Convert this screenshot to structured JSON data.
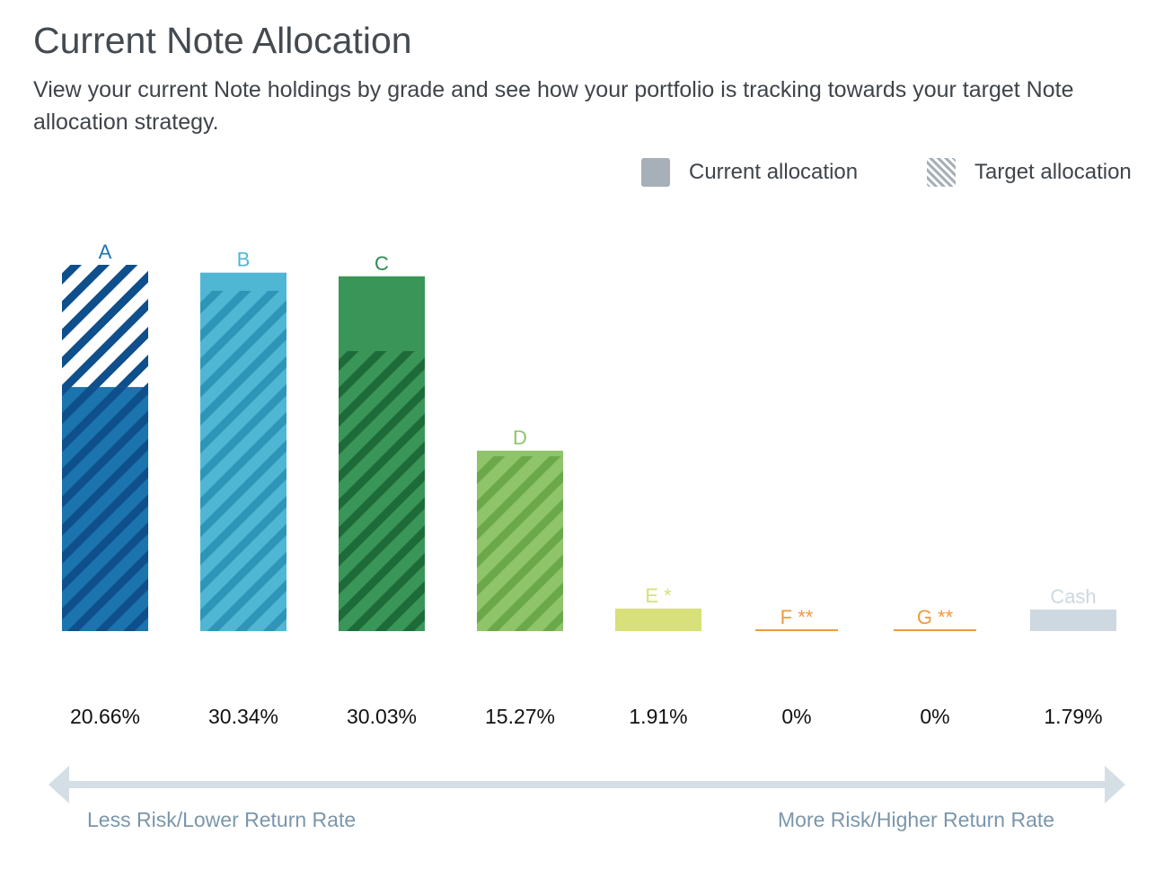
{
  "header": {
    "title": "Current Note Allocation",
    "subtitle": "View your current Note holdings by grade and see how your portfolio is tracking towards your target Note allocation strategy."
  },
  "legend": {
    "current_label": "Current allocation",
    "target_label": "Target allocation",
    "current_swatch_color": "#a7b0b8",
    "target_swatch_color": "#a7b0b8"
  },
  "chart_data": {
    "type": "bar",
    "categories": [
      "A",
      "B",
      "C",
      "D",
      "E *",
      "F **",
      "G **",
      "Cash"
    ],
    "series": [
      {
        "name": "Current allocation",
        "values": [
          20.66,
          30.34,
          30.03,
          15.27,
          1.91,
          0,
          0,
          1.79
        ]
      },
      {
        "name": "Target allocation",
        "values": [
          31,
          28.8,
          23.7,
          14.8,
          0,
          0,
          0,
          0
        ]
      }
    ],
    "value_labels": [
      "20.66%",
      "30.34%",
      "30.03%",
      "15.27%",
      "1.91%",
      "0%",
      "0%",
      "1.79%"
    ],
    "colors": [
      "#1b74ae",
      "#4fb7d3",
      "#3a9658",
      "#8fc46a",
      "#d7e07a",
      "#ef9a3d",
      "#ef9a3d",
      "#cdd8e0"
    ],
    "stripe_colors": [
      "#0e4f8c",
      "#2d96b8",
      "#1e6b3a",
      "#6aa84a",
      "#c5cf5a",
      "#e28a2a",
      "#e28a2a",
      "#b8c5cf"
    ],
    "label_colors": [
      "#1b74ae",
      "#4fb7d3",
      "#2f8a50",
      "#8fc46a",
      "#d7e07a",
      "#ef9a3d",
      "#ef9a3d",
      "#cdd8e0"
    ],
    "ylim": [
      0,
      31
    ],
    "grid": false,
    "legend_position": "top-right"
  },
  "risk_scale": {
    "left_label": "Less Risk/Lower Return Rate",
    "right_label": "More Risk/Higher Return Rate",
    "arrow_color": "#d4dee5"
  }
}
